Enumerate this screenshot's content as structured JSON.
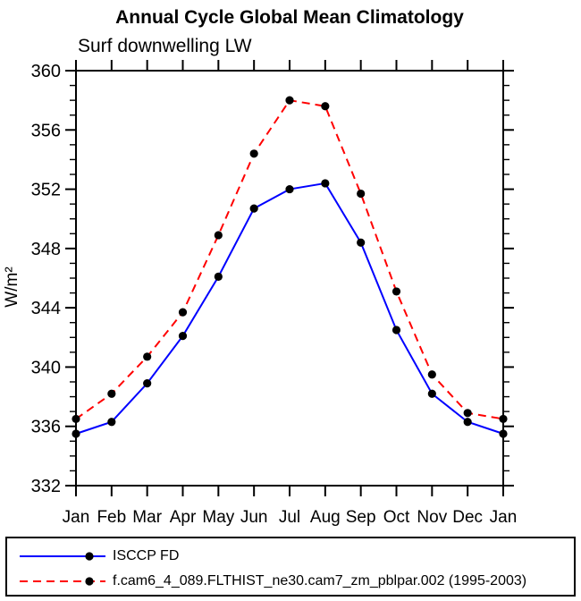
{
  "chart_data": {
    "type": "line",
    "title": "Annual Cycle Global Mean Climatology",
    "subtitle": "Surf downwelling LW",
    "ylabel": "W/m²",
    "categories": [
      "Jan",
      "Feb",
      "Mar",
      "Apr",
      "May",
      "Jun",
      "Jul",
      "Aug",
      "Sep",
      "Oct",
      "Nov",
      "Dec",
      "Jan"
    ],
    "ylim": [
      332,
      360
    ],
    "ytick_major": 4,
    "ytick_minor": 1,
    "grid": false,
    "legend_position": "bottom",
    "marker": "filled-circle",
    "marker_color": "#000000",
    "series": [
      {
        "name": "ISCCP FD",
        "color": "#0000ff",
        "style": "solid",
        "values": [
          335.5,
          336.3,
          338.9,
          342.1,
          346.1,
          350.7,
          352.0,
          352.4,
          348.4,
          342.5,
          338.2,
          336.3,
          335.5
        ]
      },
      {
        "name": "f.cam6_4_089.FLTHIST_ne30.cam7_zm_pblpar.002 (1995-2003)",
        "color": "#ff0000",
        "style": "dashed",
        "values": [
          336.5,
          338.2,
          340.7,
          343.7,
          348.9,
          354.4,
          358.0,
          357.6,
          351.7,
          345.1,
          339.5,
          336.9,
          336.5
        ]
      }
    ]
  }
}
